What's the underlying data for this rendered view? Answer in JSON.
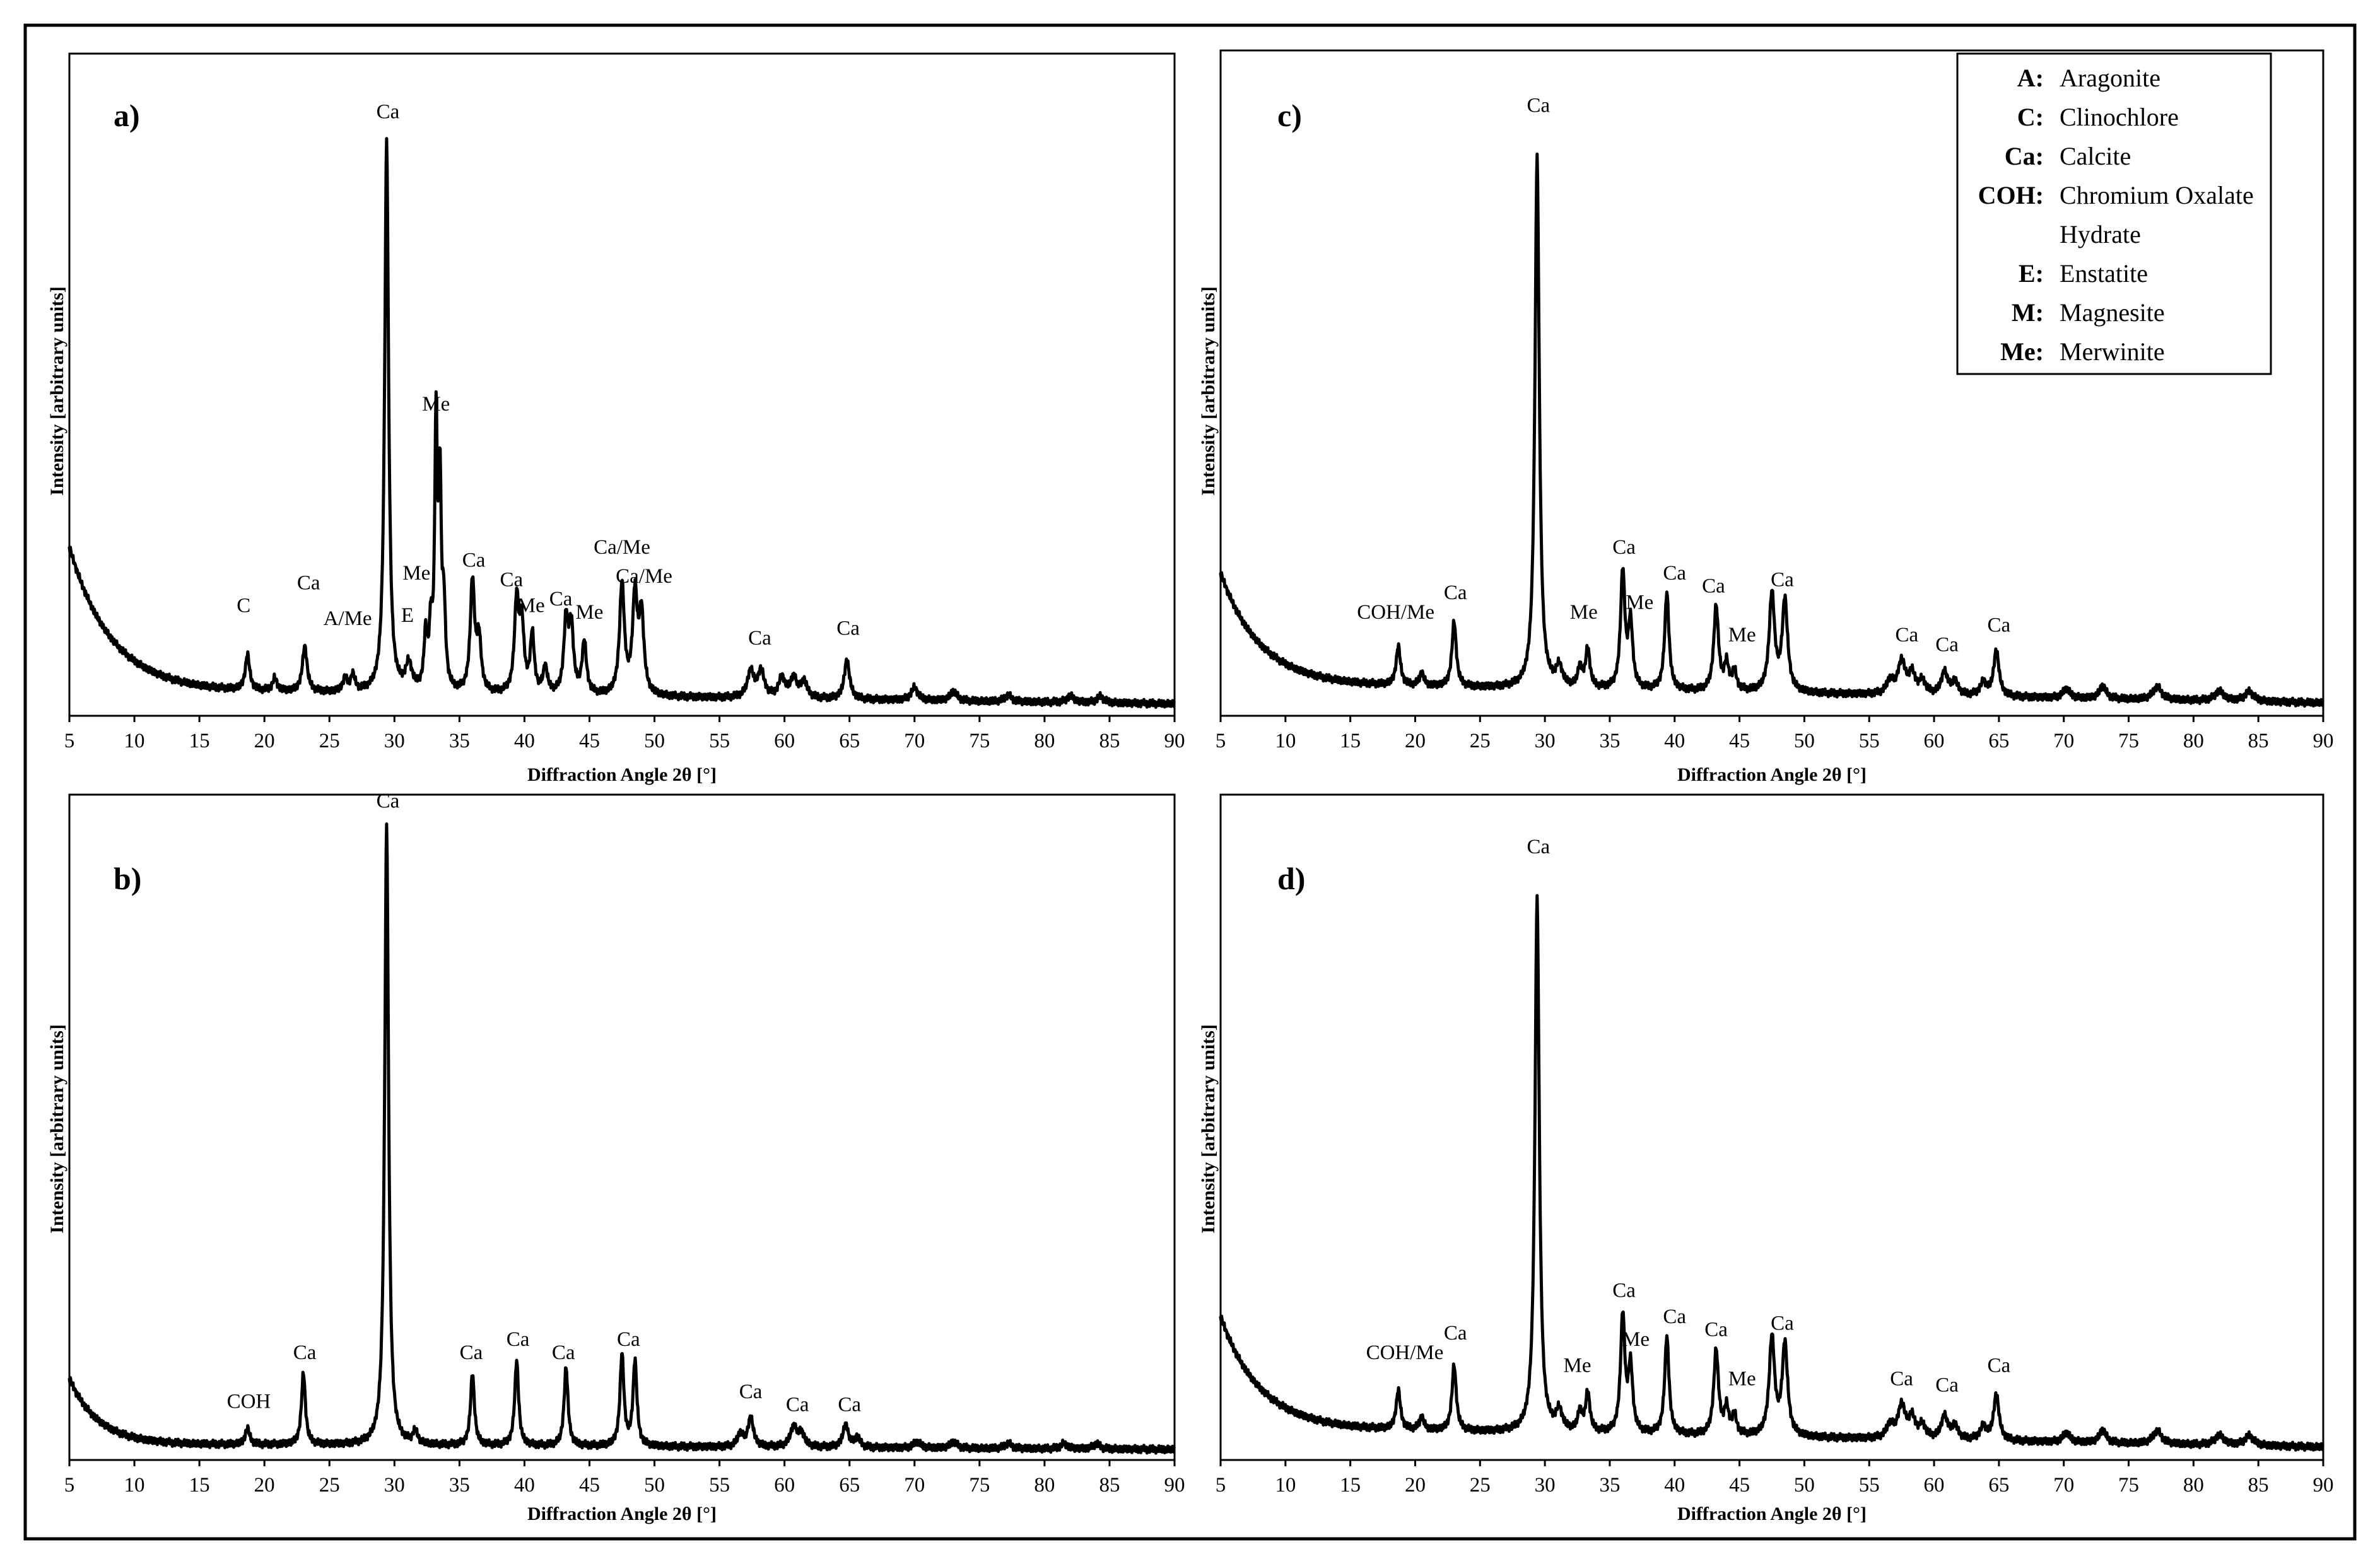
{
  "chart_data": [
    {
      "id": "a",
      "type": "line",
      "panel_label": "a)",
      "xlabel": "Diffraction Angle 2θ [°]",
      "ylabel": "Intensity [arbitrary units]",
      "xlim": [
        5,
        90
      ],
      "x_ticks": [
        5,
        10,
        15,
        20,
        25,
        30,
        35,
        40,
        45,
        50,
        55,
        60,
        65,
        70,
        75,
        80,
        85,
        90
      ],
      "ylim": [
        0,
        100
      ],
      "background": {
        "start": 22,
        "decay": 3.2,
        "base": 3,
        "slope": -0.025
      },
      "peaks": [
        [
          18.7,
          5.5,
          0.2
        ],
        [
          20.8,
          2,
          0.2
        ],
        [
          23.1,
          7,
          0.22
        ],
        [
          26.2,
          2,
          0.2
        ],
        [
          26.8,
          2.5,
          0.2
        ],
        [
          29.4,
          85,
          0.18
        ],
        [
          31.1,
          4,
          0.3
        ],
        [
          32.4,
          8,
          0.15
        ],
        [
          32.8,
          9,
          0.15
        ],
        [
          33.2,
          40,
          0.12
        ],
        [
          33.5,
          30,
          0.12
        ],
        [
          33.8,
          12,
          0.15
        ],
        [
          36.0,
          17,
          0.2
        ],
        [
          36.5,
          8,
          0.2
        ],
        [
          39.4,
          14,
          0.2
        ],
        [
          39.8,
          10,
          0.2
        ],
        [
          40.6,
          9,
          0.18
        ],
        [
          41.6,
          4,
          0.2
        ],
        [
          43.2,
          11,
          0.2
        ],
        [
          43.6,
          10,
          0.2
        ],
        [
          44.6,
          8,
          0.2
        ],
        [
          47.5,
          17,
          0.22
        ],
        [
          48.5,
          15,
          0.22
        ],
        [
          49.0,
          12,
          0.22
        ],
        [
          57.4,
          4,
          0.3
        ],
        [
          58.2,
          4,
          0.3
        ],
        [
          59.8,
          3,
          0.3
        ],
        [
          60.7,
          3,
          0.3
        ],
        [
          61.5,
          2.5,
          0.3
        ],
        [
          64.8,
          6,
          0.25
        ],
        [
          70.0,
          2,
          0.3
        ],
        [
          73.0,
          1.5,
          0.3
        ],
        [
          77.2,
          1,
          0.3
        ],
        [
          82.0,
          1,
          0.3
        ],
        [
          84.3,
          1,
          0.3
        ]
      ],
      "annotations": [
        {
          "text": "C",
          "x": 18.4,
          "y": 15
        },
        {
          "text": "Ca",
          "x": 23.4,
          "y": 18.5
        },
        {
          "text": "A/Me",
          "x": 26.4,
          "y": 13
        },
        {
          "text": "Ca",
          "x": 29.5,
          "y": 91
        },
        {
          "text": "Me",
          "x": 31.7,
          "y": 20
        },
        {
          "text": "E",
          "x": 31.0,
          "y": 13.5
        },
        {
          "text": "Me",
          "x": 33.2,
          "y": 46
        },
        {
          "text": "Ca",
          "x": 36.1,
          "y": 22
        },
        {
          "text": "Ca",
          "x": 39.0,
          "y": 19
        },
        {
          "text": "Me",
          "x": 40.5,
          "y": 15
        },
        {
          "text": "Ca",
          "x": 42.8,
          "y": 16
        },
        {
          "text": "Me",
          "x": 45.0,
          "y": 14
        },
        {
          "text": "Ca/Me",
          "x": 47.5,
          "y": 24
        },
        {
          "text": "Ca/Me",
          "x": 49.2,
          "y": 19.5
        },
        {
          "text": "Ca",
          "x": 58.1,
          "y": 10
        },
        {
          "text": "Ca",
          "x": 64.9,
          "y": 11.5
        }
      ]
    },
    {
      "id": "b",
      "type": "line",
      "panel_label": "b)",
      "xlabel": "Diffraction Angle 2θ [°]",
      "ylabel": "Intensity [arbitrary units]",
      "xlim": [
        5,
        90
      ],
      "x_ticks": [
        5,
        10,
        15,
        20,
        25,
        30,
        35,
        40,
        45,
        50,
        55,
        60,
        65,
        70,
        75,
        80,
        85,
        90
      ],
      "ylim": [
        0,
        100
      ],
      "background": {
        "start": 10,
        "decay": 2.2,
        "base": 1.5,
        "slope": -0.01
      },
      "peaks": [
        [
          18.7,
          2.5,
          0.2
        ],
        [
          23.0,
          11,
          0.18
        ],
        [
          29.4,
          95,
          0.18
        ],
        [
          31.6,
          2,
          0.2
        ],
        [
          36.0,
          11,
          0.18
        ],
        [
          39.4,
          13,
          0.18
        ],
        [
          43.2,
          12,
          0.18
        ],
        [
          47.5,
          14,
          0.18
        ],
        [
          48.5,
          13,
          0.18
        ],
        [
          56.6,
          2,
          0.25
        ],
        [
          57.4,
          4.5,
          0.25
        ],
        [
          60.7,
          3,
          0.3
        ],
        [
          61.3,
          2,
          0.3
        ],
        [
          64.7,
          3.5,
          0.25
        ],
        [
          65.6,
          1.5,
          0.25
        ],
        [
          70.2,
          1,
          0.3
        ],
        [
          73.0,
          1,
          0.3
        ],
        [
          77.2,
          0.8,
          0.3
        ],
        [
          81.5,
          0.8,
          0.3
        ],
        [
          84.0,
          0.8,
          0.3
        ]
      ],
      "annotations": [
        {
          "text": "COH",
          "x": 18.8,
          "y": 7
        },
        {
          "text": "Ca",
          "x": 23.1,
          "y": 14.5
        },
        {
          "text": "Ca",
          "x": 29.5,
          "y": 99
        },
        {
          "text": "Ca",
          "x": 35.9,
          "y": 14.5
        },
        {
          "text": "Ca",
          "x": 39.5,
          "y": 16.5
        },
        {
          "text": "Ca",
          "x": 43.0,
          "y": 14.5
        },
        {
          "text": "Ca",
          "x": 48.0,
          "y": 16.5
        },
        {
          "text": "Ca",
          "x": 57.4,
          "y": 8.5
        },
        {
          "text": "Ca",
          "x": 61.0,
          "y": 6.5
        },
        {
          "text": "Ca",
          "x": 65.0,
          "y": 6.5
        }
      ]
    },
    {
      "id": "c",
      "type": "line",
      "panel_label": "c)",
      "xlabel": "Diffraction Angle 2θ [°]",
      "ylabel": "Intensity [arbitrary units]",
      "xlim": [
        5,
        90
      ],
      "x_ticks": [
        5,
        10,
        15,
        20,
        25,
        30,
        35,
        40,
        45,
        50,
        55,
        60,
        65,
        70,
        75,
        80,
        85,
        90
      ],
      "ylim": [
        0,
        100
      ],
      "background": {
        "start": 17,
        "decay": 3.0,
        "base": 4,
        "slope": -0.035
      },
      "peaks": [
        [
          18.7,
          6,
          0.2
        ],
        [
          20.5,
          2,
          0.2
        ],
        [
          23.0,
          10,
          0.2
        ],
        [
          29.4,
          82,
          0.2
        ],
        [
          31.1,
          3,
          0.3
        ],
        [
          32.7,
          3,
          0.2
        ],
        [
          33.3,
          6,
          0.2
        ],
        [
          36.0,
          18,
          0.2
        ],
        [
          36.6,
          10,
          0.2
        ],
        [
          39.4,
          15,
          0.2
        ],
        [
          43.2,
          13,
          0.22
        ],
        [
          44.0,
          4,
          0.2
        ],
        [
          44.6,
          3,
          0.2
        ],
        [
          47.5,
          15,
          0.25
        ],
        [
          48.5,
          14,
          0.25
        ],
        [
          56.6,
          2,
          0.3
        ],
        [
          57.5,
          5,
          0.35
        ],
        [
          58.3,
          3,
          0.3
        ],
        [
          59.1,
          2,
          0.3
        ],
        [
          60.8,
          3.5,
          0.3
        ],
        [
          61.6,
          2,
          0.3
        ],
        [
          63.8,
          2,
          0.3
        ],
        [
          64.8,
          7,
          0.25
        ],
        [
          70.2,
          1.5,
          0.3
        ],
        [
          73.0,
          2,
          0.3
        ],
        [
          77.2,
          2,
          0.4
        ],
        [
          82.0,
          1.5,
          0.4
        ],
        [
          84.3,
          1.5,
          0.4
        ]
      ],
      "annotations": [
        {
          "text": "COH/Me",
          "x": 18.5,
          "y": 14
        },
        {
          "text": "Ca",
          "x": 23.1,
          "y": 17
        },
        {
          "text": "Ca",
          "x": 29.5,
          "y": 92
        },
        {
          "text": "Me",
          "x": 33.0,
          "y": 14
        },
        {
          "text": "Ca",
          "x": 36.1,
          "y": 24
        },
        {
          "text": "Me",
          "x": 37.3,
          "y": 15.5
        },
        {
          "text": "Ca",
          "x": 40.0,
          "y": 20
        },
        {
          "text": "Ca",
          "x": 43.0,
          "y": 18
        },
        {
          "text": "Me",
          "x": 45.2,
          "y": 10.5
        },
        {
          "text": "Ca",
          "x": 48.3,
          "y": 19
        },
        {
          "text": "Ca",
          "x": 57.9,
          "y": 10.5
        },
        {
          "text": "Ca",
          "x": 61.0,
          "y": 9
        },
        {
          "text": "Ca",
          "x": 65.0,
          "y": 12
        }
      ]
    },
    {
      "id": "d",
      "type": "line",
      "panel_label": "d)",
      "xlabel": "Diffraction Angle 2θ [°]",
      "ylabel": "Intensity [arbitrary units]",
      "xlim": [
        5,
        90
      ],
      "x_ticks": [
        5,
        10,
        15,
        20,
        25,
        30,
        35,
        40,
        45,
        50,
        55,
        60,
        65,
        70,
        75,
        80,
        85,
        90
      ],
      "ylim": [
        0,
        100
      ],
      "background": {
        "start": 17,
        "decay": 3.0,
        "base": 4,
        "slope": -0.035
      },
      "peaks": [
        [
          18.7,
          6,
          0.2
        ],
        [
          20.5,
          2,
          0.2
        ],
        [
          23.0,
          10,
          0.2
        ],
        [
          29.4,
          82,
          0.2
        ],
        [
          31.1,
          3,
          0.3
        ],
        [
          32.7,
          3,
          0.2
        ],
        [
          33.3,
          6,
          0.2
        ],
        [
          36.0,
          18,
          0.2
        ],
        [
          36.6,
          10,
          0.2
        ],
        [
          39.4,
          15,
          0.2
        ],
        [
          43.2,
          13,
          0.22
        ],
        [
          44.0,
          4,
          0.2
        ],
        [
          44.6,
          3,
          0.2
        ],
        [
          47.5,
          15,
          0.25
        ],
        [
          48.5,
          14,
          0.25
        ],
        [
          56.6,
          2,
          0.3
        ],
        [
          57.5,
          5,
          0.35
        ],
        [
          58.3,
          3,
          0.3
        ],
        [
          59.1,
          2,
          0.3
        ],
        [
          60.8,
          3.5,
          0.3
        ],
        [
          61.6,
          2,
          0.3
        ],
        [
          63.8,
          2,
          0.3
        ],
        [
          64.8,
          7,
          0.25
        ],
        [
          70.2,
          1.5,
          0.3
        ],
        [
          73.0,
          2,
          0.3
        ],
        [
          77.2,
          2,
          0.4
        ],
        [
          82.0,
          1.5,
          0.4
        ],
        [
          84.3,
          1.5,
          0.4
        ]
      ],
      "annotations": [
        {
          "text": "COH/Me",
          "x": 19.2,
          "y": 14.5
        },
        {
          "text": "Ca",
          "x": 23.1,
          "y": 17.5
        },
        {
          "text": "Ca",
          "x": 29.5,
          "y": 92
        },
        {
          "text": "Me",
          "x": 32.5,
          "y": 12.5
        },
        {
          "text": "Ca",
          "x": 36.1,
          "y": 24
        },
        {
          "text": "Me",
          "x": 37.0,
          "y": 16.5
        },
        {
          "text": "Ca",
          "x": 40.0,
          "y": 20
        },
        {
          "text": "Ca",
          "x": 43.2,
          "y": 18
        },
        {
          "text": "Me",
          "x": 45.2,
          "y": 10.5
        },
        {
          "text": "Ca",
          "x": 48.3,
          "y": 19
        },
        {
          "text": "Ca",
          "x": 57.5,
          "y": 10.5
        },
        {
          "text": "Ca",
          "x": 61.0,
          "y": 9.5
        },
        {
          "text": "Ca",
          "x": 65.0,
          "y": 12.5
        }
      ]
    }
  ],
  "legend": [
    {
      "code": "A:",
      "name": "Aragonite"
    },
    {
      "code": "C:",
      "name": "Clinochlore"
    },
    {
      "code": "Ca:",
      "name": "Calcite"
    },
    {
      "code": "COH:",
      "name": "Chromium Oxalate",
      "name2": "Hydrate"
    },
    {
      "code": "E:",
      "name": "Enstatite"
    },
    {
      "code": "M:",
      "name": "Magnesite"
    },
    {
      "code": "Me:",
      "name": "Merwinite"
    }
  ]
}
